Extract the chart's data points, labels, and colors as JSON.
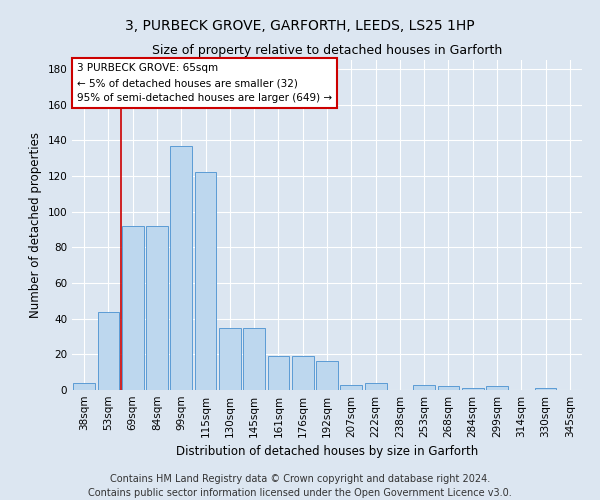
{
  "title": "3, PURBECK GROVE, GARFORTH, LEEDS, LS25 1HP",
  "subtitle": "Size of property relative to detached houses in Garforth",
  "xlabel": "Distribution of detached houses by size in Garforth",
  "ylabel": "Number of detached properties",
  "footer_line1": "Contains HM Land Registry data © Crown copyright and database right 2024.",
  "footer_line2": "Contains public sector information licensed under the Open Government Licence v3.0.",
  "categories": [
    "38sqm",
    "53sqm",
    "69sqm",
    "84sqm",
    "99sqm",
    "115sqm",
    "130sqm",
    "145sqm",
    "161sqm",
    "176sqm",
    "192sqm",
    "207sqm",
    "222sqm",
    "238sqm",
    "253sqm",
    "268sqm",
    "284sqm",
    "299sqm",
    "314sqm",
    "330sqm",
    "345sqm"
  ],
  "values": [
    4,
    44,
    92,
    92,
    137,
    122,
    35,
    35,
    19,
    19,
    16,
    3,
    4,
    0,
    3,
    2,
    1,
    2,
    0,
    1,
    0
  ],
  "bar_color": "#bdd7ee",
  "bar_edge_color": "#5b9bd5",
  "annotation_text_line1": "3 PURBECK GROVE: 65sqm",
  "annotation_text_line2": "← 5% of detached houses are smaller (32)",
  "annotation_text_line3": "95% of semi-detached houses are larger (649) →",
  "annotation_box_facecolor": "#ffffff",
  "annotation_box_edgecolor": "#cc0000",
  "red_line_x": 1.5,
  "ylim": [
    0,
    185
  ],
  "yticks": [
    0,
    20,
    40,
    60,
    80,
    100,
    120,
    140,
    160,
    180
  ],
  "background_color": "#dce6f1",
  "grid_color": "#ffffff",
  "title_fontsize": 10,
  "subtitle_fontsize": 9,
  "axis_label_fontsize": 8.5,
  "tick_fontsize": 7.5,
  "footer_fontsize": 7,
  "annotation_fontsize": 7.5
}
